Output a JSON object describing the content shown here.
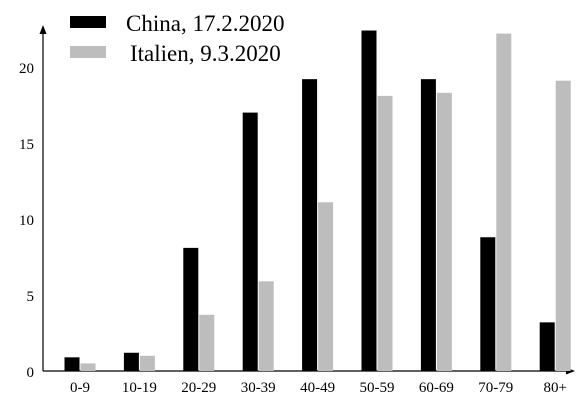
{
  "chart_data": {
    "type": "bar",
    "title": "",
    "xlabel": "",
    "ylabel": "",
    "ylim": [
      0,
      23
    ],
    "yticks": [
      "0",
      "5",
      "10",
      "15",
      "20"
    ],
    "categories": [
      "0-9",
      "10-19",
      "20-29",
      "30-39",
      "40-49",
      "50-59",
      "60-69",
      "70-79",
      "80+"
    ],
    "series": [
      {
        "name": "China, 17.2.2020",
        "color": "#000000",
        "values": [
          0.9,
          1.2,
          8.1,
          17.0,
          19.2,
          22.4,
          19.2,
          8.8,
          3.2
        ]
      },
      {
        "name": "Italien, 9.3.2020",
        "color": "#bdbdbd",
        "values": [
          0.5,
          1.0,
          3.7,
          5.9,
          11.1,
          18.1,
          18.3,
          22.2,
          19.1
        ]
      }
    ],
    "legend": "top-left",
    "grid": false
  }
}
